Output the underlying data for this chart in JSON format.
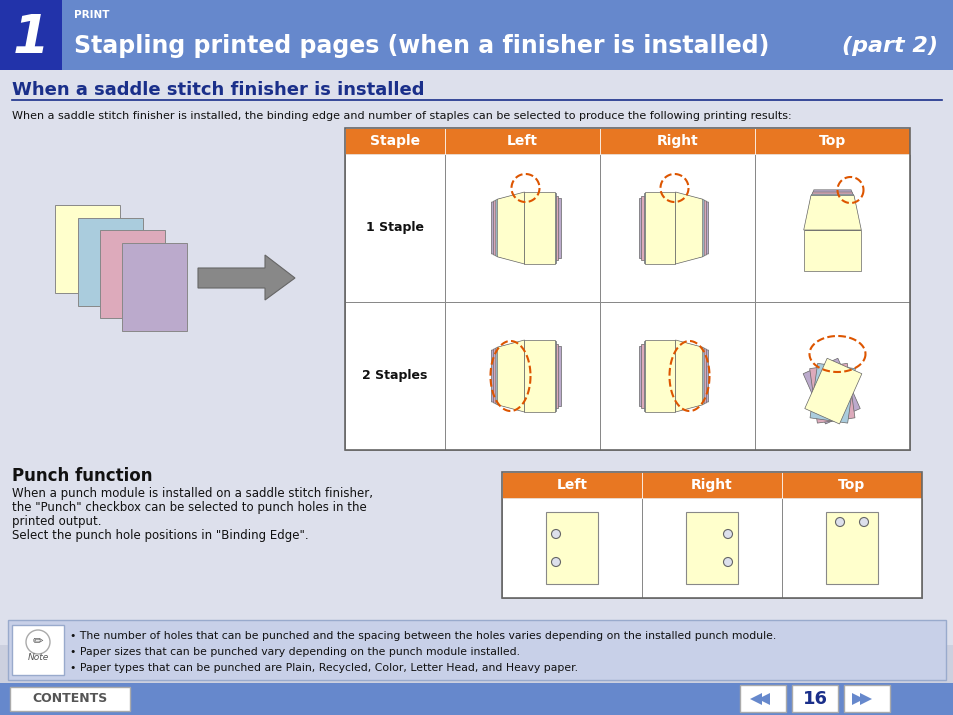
{
  "bg_color": "#ccd0df",
  "header_bg": "#6688cc",
  "header_dark": "#2233aa",
  "orange_header": "#e87722",
  "white": "#ffffff",
  "dark_blue_text": "#1a2f8a",
  "black_text": "#111111",
  "body_bg": "#dde0ec",
  "note_bg": "#c8d0e8",
  "yellow_paper": "#ffffcc",
  "light_blue_paper": "#aaccdd",
  "pink_paper": "#ddaabb",
  "purple_paper": "#bbaacc",
  "gray_paper": "#aaaaaa",
  "title_number": "1",
  "title_small": "PRINT",
  "title_main": "Stapling printed pages (when a finisher is installed)",
  "title_part": "(part 2)",
  "section1_title": "When a saddle stitch finisher is installed",
  "section1_body": "When a saddle stitch finisher is installed, the binding edge and number of staples can be selected to produce the following printing results:",
  "table1_headers": [
    "Staple",
    "Left",
    "Right",
    "Top"
  ],
  "table1_rows": [
    "1 Staple",
    "2 Staples"
  ],
  "section2_title": "Punch function",
  "section2_body": "When a punch module is installed on a saddle stitch finisher,\nthe \"Punch\" checkbox can be selected to punch holes in the\nprinted output.\nSelect the punch hole positions in \"Binding Edge\".",
  "table2_headers": [
    "Left",
    "Right",
    "Top"
  ],
  "note_bullets": [
    "The number of holes that can be punched and the spacing between the holes varies depending on the installed punch module.",
    "Paper sizes that can be punched vary depending on the punch module installed.",
    "Paper types that can be punched are Plain, Recycled, Color, Letter Head, and Heavy paper."
  ],
  "footer_contents": "CONTENTS",
  "footer_page": "16"
}
